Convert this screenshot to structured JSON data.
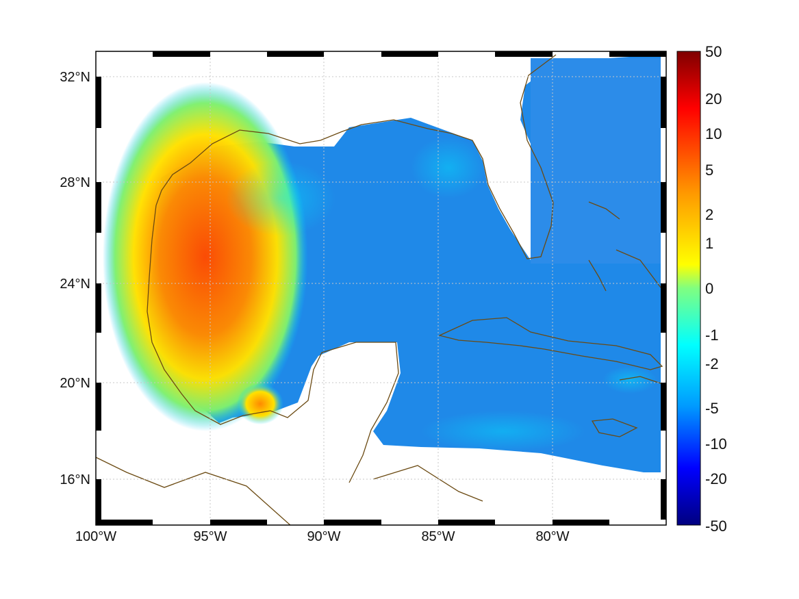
{
  "map": {
    "x_ticks": [
      "100°W",
      "95°W",
      "90°W",
      "85°W",
      "80°W"
    ],
    "y_ticks": [
      "32°N",
      "28°N",
      "24°N",
      "20°N",
      "16°N"
    ],
    "coastline_color": "#6b4a12",
    "ocean_color": "#2f86e6",
    "land_color": "#ffffff"
  },
  "colorbar": {
    "labels": [
      "50",
      "20",
      "10",
      "5",
      "2",
      "1",
      "0",
      "-1",
      "-2",
      "-5",
      "-10",
      "-20",
      "-50"
    ]
  }
}
